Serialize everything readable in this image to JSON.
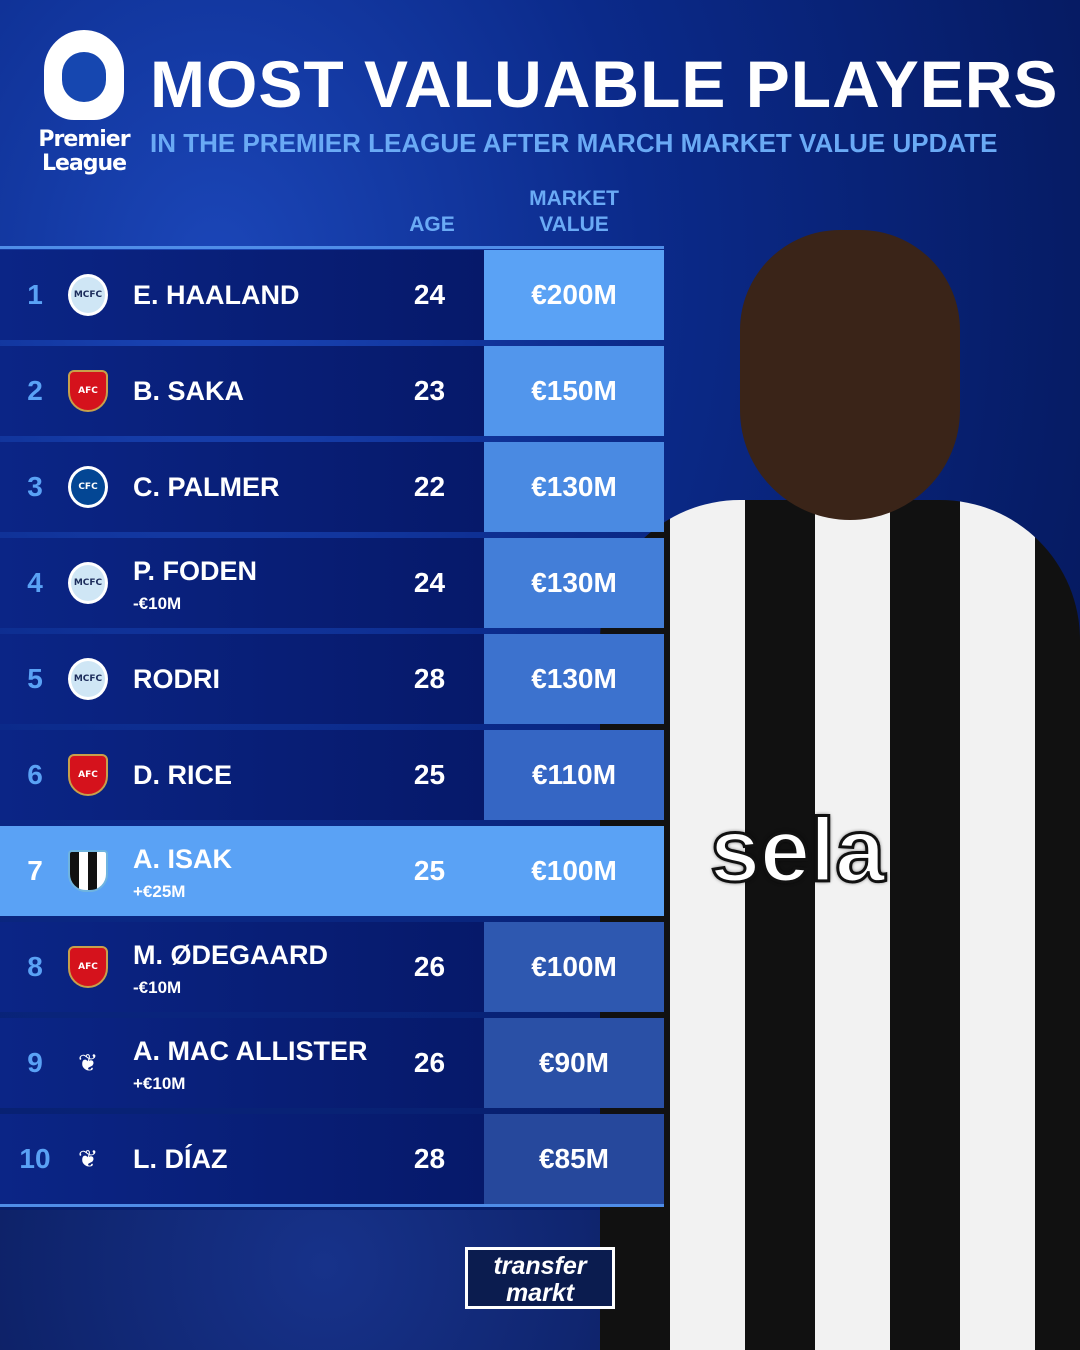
{
  "header": {
    "logo_text": "Premier League",
    "title": "MOST VALUABLE PLAYERS",
    "subtitle": "IN THE PREMIER LEAGUE AFTER MARCH MARKET VALUE UPDATE"
  },
  "columns": {
    "age": "AGE",
    "market_value_1": "MARKET",
    "market_value_2": "VALUE"
  },
  "players": [
    {
      "rank": "1",
      "club": "Manchester City",
      "name": "E. HAALAND",
      "change": "",
      "age": "24",
      "value": "€200M",
      "value_color": "#5aa2f5"
    },
    {
      "rank": "2",
      "club": "Arsenal",
      "name": "B. SAKA",
      "change": "",
      "age": "23",
      "value": "€150M",
      "value_color": "#5296ec"
    },
    {
      "rank": "3",
      "club": "Chelsea",
      "name": "C. PALMER",
      "change": "",
      "age": "22",
      "value": "€130M",
      "value_color": "#4a8ae2"
    },
    {
      "rank": "4",
      "club": "Manchester City",
      "name": "P. FODEN",
      "change": "-€10M",
      "age": "24",
      "value": "€130M",
      "value_color": "#437ed8"
    },
    {
      "rank": "5",
      "club": "Manchester City",
      "name": "RODRI",
      "change": "",
      "age": "28",
      "value": "€130M",
      "value_color": "#3c72ce"
    },
    {
      "rank": "6",
      "club": "Arsenal",
      "name": "D. RICE",
      "change": "",
      "age": "25",
      "value": "€110M",
      "value_color": "#3566c4"
    },
    {
      "rank": "7",
      "club": "Newcastle United",
      "name": "A. ISAK",
      "change": "+€25M",
      "age": "25",
      "value": "€100M",
      "value_color": "#5aa2f5",
      "highlight": true
    },
    {
      "rank": "8",
      "club": "Arsenal",
      "name": "M. ØDEGAARD",
      "change": "-€10M",
      "age": "26",
      "value": "€100M",
      "value_color": "#2e58b0"
    },
    {
      "rank": "9",
      "club": "Liverpool",
      "name": "A. MAC ALLISTER",
      "change": "+€10M",
      "age": "26",
      "value": "€90M",
      "value_color": "#2a50a6"
    },
    {
      "rank": "10",
      "club": "Liverpool",
      "name": "L. DÍAZ",
      "change": "",
      "age": "28",
      "value": "€85M",
      "value_color": "#26489c"
    }
  ],
  "photo": {
    "sponsor": "sela"
  },
  "footer": {
    "brand_line1": "transfer",
    "brand_line2": "markt"
  }
}
